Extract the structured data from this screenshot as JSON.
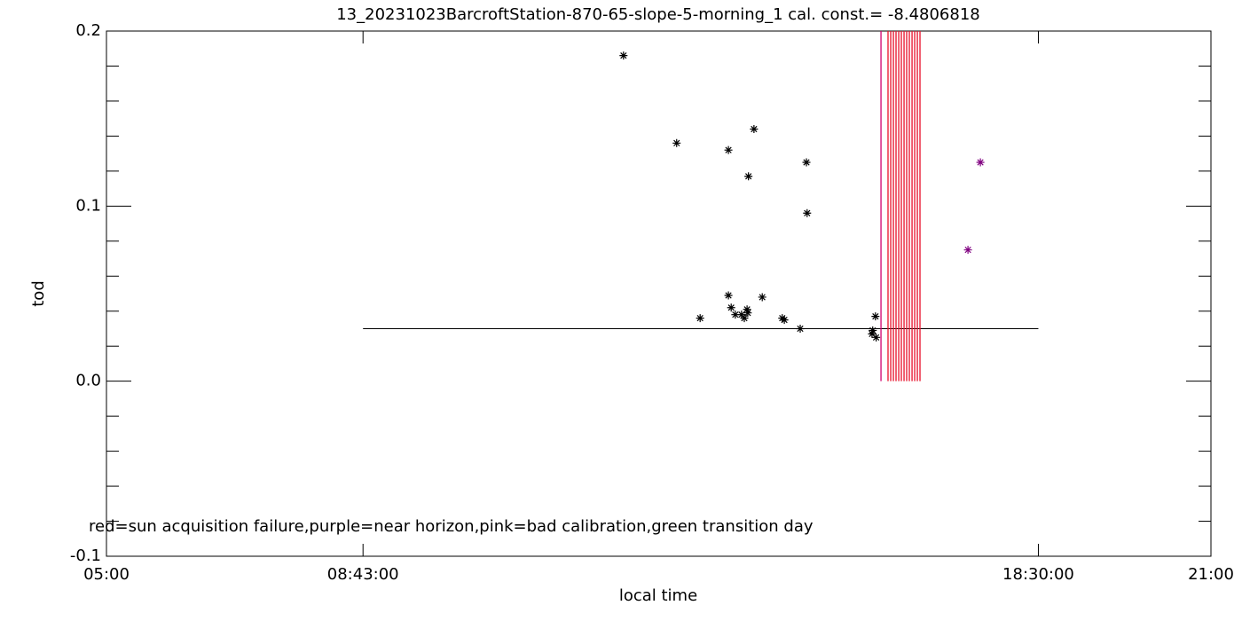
{
  "chart_data": {
    "type": "scatter",
    "title": "13_20231023BarcroftStation-870-65-slope-5-morning_1 cal. const.= -8.4806818",
    "x_label": "local time",
    "y_label": "tod",
    "annotation": "red=sun acquisition failure,purple=near horizon,pink=bad calibration,green transition day",
    "xlim": [
      5,
      21
    ],
    "ylim": [
      -0.1,
      0.2
    ],
    "xticks": [
      {
        "value": 5,
        "label": "05:00"
      },
      {
        "value": 8.7167,
        "label": "08:43:00"
      },
      {
        "value": 18.5,
        "label": "18:30:00"
      },
      {
        "value": 21,
        "label": "21:00"
      }
    ],
    "yticks": [
      {
        "value": -0.1,
        "label": "-0.1"
      },
      {
        "value": 0,
        "label": "0.0"
      },
      0.1,
      0.2
    ],
    "yminorticks": [
      -0.08,
      -0.06,
      -0.04,
      -0.02,
      0.02,
      0.04,
      0.06,
      0.08,
      0.12,
      0.14,
      0.16,
      0.18
    ],
    "series": [
      {
        "color": "#000000",
        "x": [
          12.49,
          13.26,
          14.01,
          14.38,
          14.3,
          15.14,
          15.15,
          14.01,
          14.05,
          14.11,
          14.2,
          14.24,
          14.28,
          14.29,
          14.5,
          13.6,
          14.79,
          14.82,
          15.05,
          16.09,
          16.1,
          16.14,
          16.15
        ],
        "values": [
          0.186,
          0.136,
          0.132,
          0.144,
          0.117,
          0.125,
          0.096,
          0.049,
          0.042,
          0.038,
          0.038,
          0.036,
          0.041,
          0.039,
          0.048,
          0.036,
          0.036,
          0.035,
          0.03,
          0.027,
          0.029,
          0.037,
          0.025
        ]
      },
      {
        "color": "#800080",
        "x": [
          17.48,
          17.66
        ],
        "values": [
          0.075,
          0.125
        ]
      }
    ],
    "reference_line": {
      "color": "#000000",
      "x": [
        8.7167,
        18.5
      ],
      "y": 0.03
    },
    "flag_lines": [
      {
        "color": "#d0006f",
        "y_range": [
          0,
          0.2
        ],
        "x": [
          16.22
        ]
      },
      {
        "color": "#e8102a",
        "y_range": [
          0,
          0.2
        ],
        "x": [
          16.322,
          16.361,
          16.4,
          16.438,
          16.477,
          16.515,
          16.554,
          16.592,
          16.631,
          16.67,
          16.708,
          16.747,
          16.785
        ]
      }
    ]
  }
}
